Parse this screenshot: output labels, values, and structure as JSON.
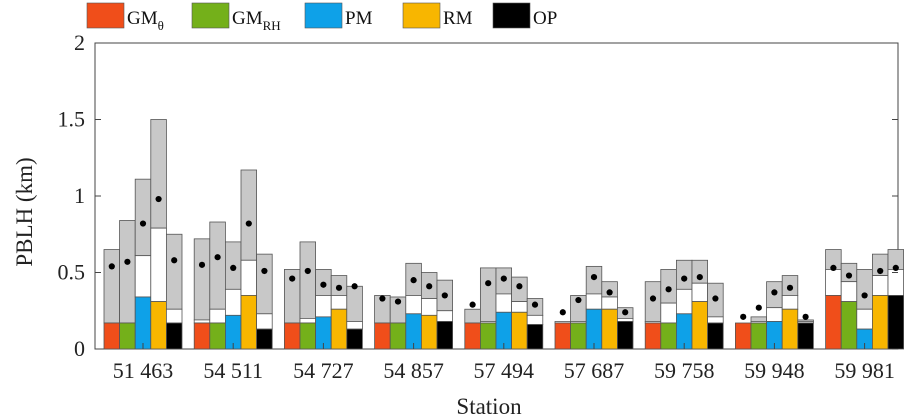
{
  "chart_data": {
    "type": "bar",
    "xlabel": "Station",
    "ylabel": "PBLH (km)",
    "ylim": [
      0,
      2
    ],
    "yticks": [
      "0",
      "0.5",
      "1",
      "1.5",
      "2"
    ],
    "grid": false,
    "legend_position": "top-left",
    "categories": [
      "51 463",
      "54 511",
      "54 727",
      "54 857",
      "57 494",
      "57 687",
      "59 758",
      "59 948",
      "59 981"
    ],
    "series": [
      {
        "name": "GM",
        "subscript": "θ",
        "color": "#f04e1a"
      },
      {
        "name": "GM",
        "subscript": "RH",
        "color": "#74b01a"
      },
      {
        "name": "PM",
        "subscript": "",
        "color": "#0ea1e8"
      },
      {
        "name": "RM",
        "subscript": "",
        "color": "#f8b600"
      },
      {
        "name": "OP",
        "subscript": "",
        "color": "#000000"
      }
    ],
    "box_color": "#c8c8c8",
    "stations": [
      {
        "label": "51 463",
        "bars": [
          {
            "bar": 0.17,
            "mid": 0.17,
            "top": 0.65,
            "dot": 0.54
          },
          {
            "bar": 0.17,
            "mid": 0.17,
            "top": 0.84,
            "dot": 0.57
          },
          {
            "bar": 0.34,
            "mid": 0.61,
            "top": 1.11,
            "dot": 0.82
          },
          {
            "bar": 0.31,
            "mid": 0.79,
            "top": 1.5,
            "dot": 0.98
          },
          {
            "bar": 0.17,
            "mid": 0.26,
            "top": 0.75,
            "dot": 0.58
          }
        ]
      },
      {
        "label": "54 511",
        "bars": [
          {
            "bar": 0.17,
            "mid": 0.19,
            "top": 0.72,
            "dot": 0.55
          },
          {
            "bar": 0.17,
            "mid": 0.26,
            "top": 0.83,
            "dot": 0.6
          },
          {
            "bar": 0.22,
            "mid": 0.39,
            "top": 0.7,
            "dot": 0.53
          },
          {
            "bar": 0.35,
            "mid": 0.58,
            "top": 1.17,
            "dot": 0.82
          },
          {
            "bar": 0.13,
            "mid": 0.23,
            "top": 0.62,
            "dot": 0.51
          }
        ]
      },
      {
        "label": "54 727",
        "bars": [
          {
            "bar": 0.17,
            "mid": 0.17,
            "top": 0.52,
            "dot": 0.46
          },
          {
            "bar": 0.17,
            "mid": 0.2,
            "top": 0.7,
            "dot": 0.51
          },
          {
            "bar": 0.21,
            "mid": 0.35,
            "top": 0.52,
            "dot": 0.42
          },
          {
            "bar": 0.26,
            "mid": 0.35,
            "top": 0.48,
            "dot": 0.4
          },
          {
            "bar": 0.13,
            "mid": 0.18,
            "top": 0.41,
            "dot": 0.41
          }
        ]
      },
      {
        "label": "54 857",
        "bars": [
          {
            "bar": 0.17,
            "mid": 0.17,
            "top": 0.35,
            "dot": 0.33
          },
          {
            "bar": 0.17,
            "mid": 0.17,
            "top": 0.34,
            "dot": 0.31
          },
          {
            "bar": 0.23,
            "mid": 0.35,
            "top": 0.56,
            "dot": 0.45
          },
          {
            "bar": 0.22,
            "mid": 0.33,
            "top": 0.5,
            "dot": 0.41
          },
          {
            "bar": 0.18,
            "mid": 0.25,
            "top": 0.45,
            "dot": 0.35
          }
        ]
      },
      {
        "label": "57 494",
        "bars": [
          {
            "bar": 0.17,
            "mid": 0.17,
            "top": 0.26,
            "dot": 0.29
          },
          {
            "bar": 0.17,
            "mid": 0.18,
            "top": 0.53,
            "dot": 0.43
          },
          {
            "bar": 0.24,
            "mid": 0.36,
            "top": 0.53,
            "dot": 0.46
          },
          {
            "bar": 0.24,
            "mid": 0.31,
            "top": 0.47,
            "dot": 0.41
          },
          {
            "bar": 0.16,
            "mid": 0.22,
            "top": 0.33,
            "dot": 0.29
          }
        ]
      },
      {
        "label": "57 687",
        "bars": [
          {
            "bar": 0.17,
            "mid": 0.18,
            "top": 0.18,
            "dot": 0.24
          },
          {
            "bar": 0.17,
            "mid": 0.18,
            "top": 0.35,
            "dot": 0.32
          },
          {
            "bar": 0.26,
            "mid": 0.36,
            "top": 0.54,
            "dot": 0.47
          },
          {
            "bar": 0.26,
            "mid": 0.34,
            "top": 0.44,
            "dot": 0.37
          },
          {
            "bar": 0.18,
            "mid": 0.2,
            "top": 0.27,
            "dot": 0.24
          }
        ]
      },
      {
        "label": "59 758",
        "bars": [
          {
            "bar": 0.17,
            "mid": 0.18,
            "top": 0.44,
            "dot": 0.33
          },
          {
            "bar": 0.17,
            "mid": 0.3,
            "top": 0.52,
            "dot": 0.39
          },
          {
            "bar": 0.23,
            "mid": 0.39,
            "top": 0.58,
            "dot": 0.46
          },
          {
            "bar": 0.31,
            "mid": 0.43,
            "top": 0.58,
            "dot": 0.47
          },
          {
            "bar": 0.17,
            "mid": 0.21,
            "top": 0.43,
            "dot": 0.33
          }
        ]
      },
      {
        "label": "59 948",
        "bars": [
          {
            "bar": 0.17,
            "mid": 0.17,
            "top": 0.17,
            "dot": 0.21
          },
          {
            "bar": 0.17,
            "mid": 0.18,
            "top": 0.21,
            "dot": 0.27
          },
          {
            "bar": 0.18,
            "mid": 0.27,
            "top": 0.44,
            "dot": 0.37
          },
          {
            "bar": 0.26,
            "mid": 0.35,
            "top": 0.48,
            "dot": 0.4
          },
          {
            "bar": 0.17,
            "mid": 0.18,
            "top": 0.19,
            "dot": 0.21
          }
        ]
      },
      {
        "label": "59 981",
        "bars": [
          {
            "bar": 0.35,
            "mid": 0.52,
            "top": 0.65,
            "dot": 0.53
          },
          {
            "bar": 0.31,
            "mid": 0.44,
            "top": 0.56,
            "dot": 0.48
          },
          {
            "bar": 0.13,
            "mid": 0.26,
            "top": 0.52,
            "dot": 0.35
          },
          {
            "bar": 0.35,
            "mid": 0.48,
            "top": 0.62,
            "dot": 0.51
          },
          {
            "bar": 0.35,
            "mid": 0.52,
            "top": 0.65,
            "dot": 0.53
          }
        ]
      }
    ]
  }
}
